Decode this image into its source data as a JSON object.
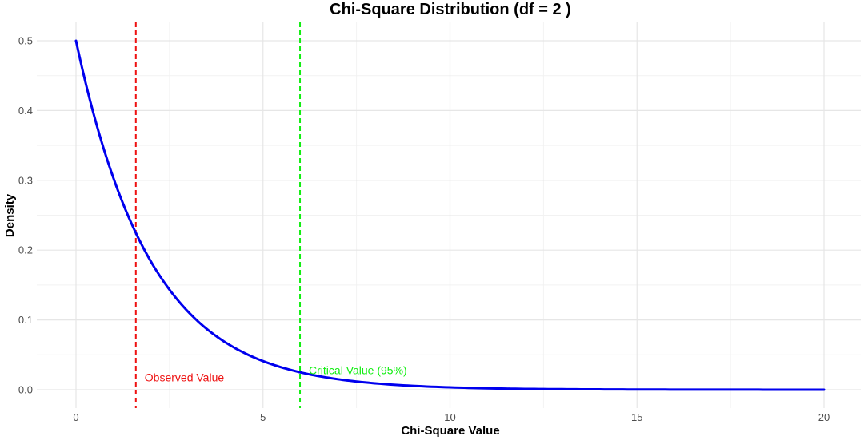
{
  "chart_data": {
    "type": "line",
    "title": "Chi-Square Distribution (df = 2 )",
    "xlabel": "Chi-Square Value",
    "ylabel": "Density",
    "xlim": [
      0,
      20
    ],
    "ylim": [
      0,
      0.5
    ],
    "x_ticks": [
      0,
      5,
      10,
      15,
      20
    ],
    "y_ticks": [
      0.0,
      0.1,
      0.2,
      0.3,
      0.4,
      0.5
    ],
    "x_tick_labels": [
      "0",
      "5",
      "10",
      "15",
      "20"
    ],
    "y_tick_labels": [
      "0.0",
      "0.1",
      "0.2",
      "0.3",
      "0.4",
      "0.5"
    ],
    "grid": true,
    "series": [
      {
        "color": "#0000ee",
        "x": [
          0,
          0.5,
          1,
          1.5,
          2,
          2.5,
          3,
          3.5,
          4,
          4.5,
          5,
          5.5,
          6,
          6.5,
          7,
          7.5,
          8,
          9,
          10,
          11,
          12,
          13,
          14,
          15,
          16,
          17,
          18,
          19,
          20
        ],
        "y": [
          0.5,
          0.3894,
          0.3033,
          0.2362,
          0.1839,
          0.1433,
          0.1116,
          0.0869,
          0.0677,
          0.0527,
          0.041,
          0.032,
          0.0249,
          0.0194,
          0.0151,
          0.0118,
          0.0092,
          0.0056,
          0.0034,
          0.002,
          0.0012,
          0.0008,
          0.0005,
          0.0003,
          0.0002,
          0.0001,
          0.0001,
          0.0,
          0.0
        ]
      }
    ],
    "reference_lines": [
      {
        "x": 1.6,
        "color": "#ee1111",
        "label": "Observed Value",
        "label_y": 0.018
      },
      {
        "x": 5.99,
        "color": "#11ee11",
        "label": "Critical Value (95%)",
        "label_y": 0.028
      }
    ]
  }
}
